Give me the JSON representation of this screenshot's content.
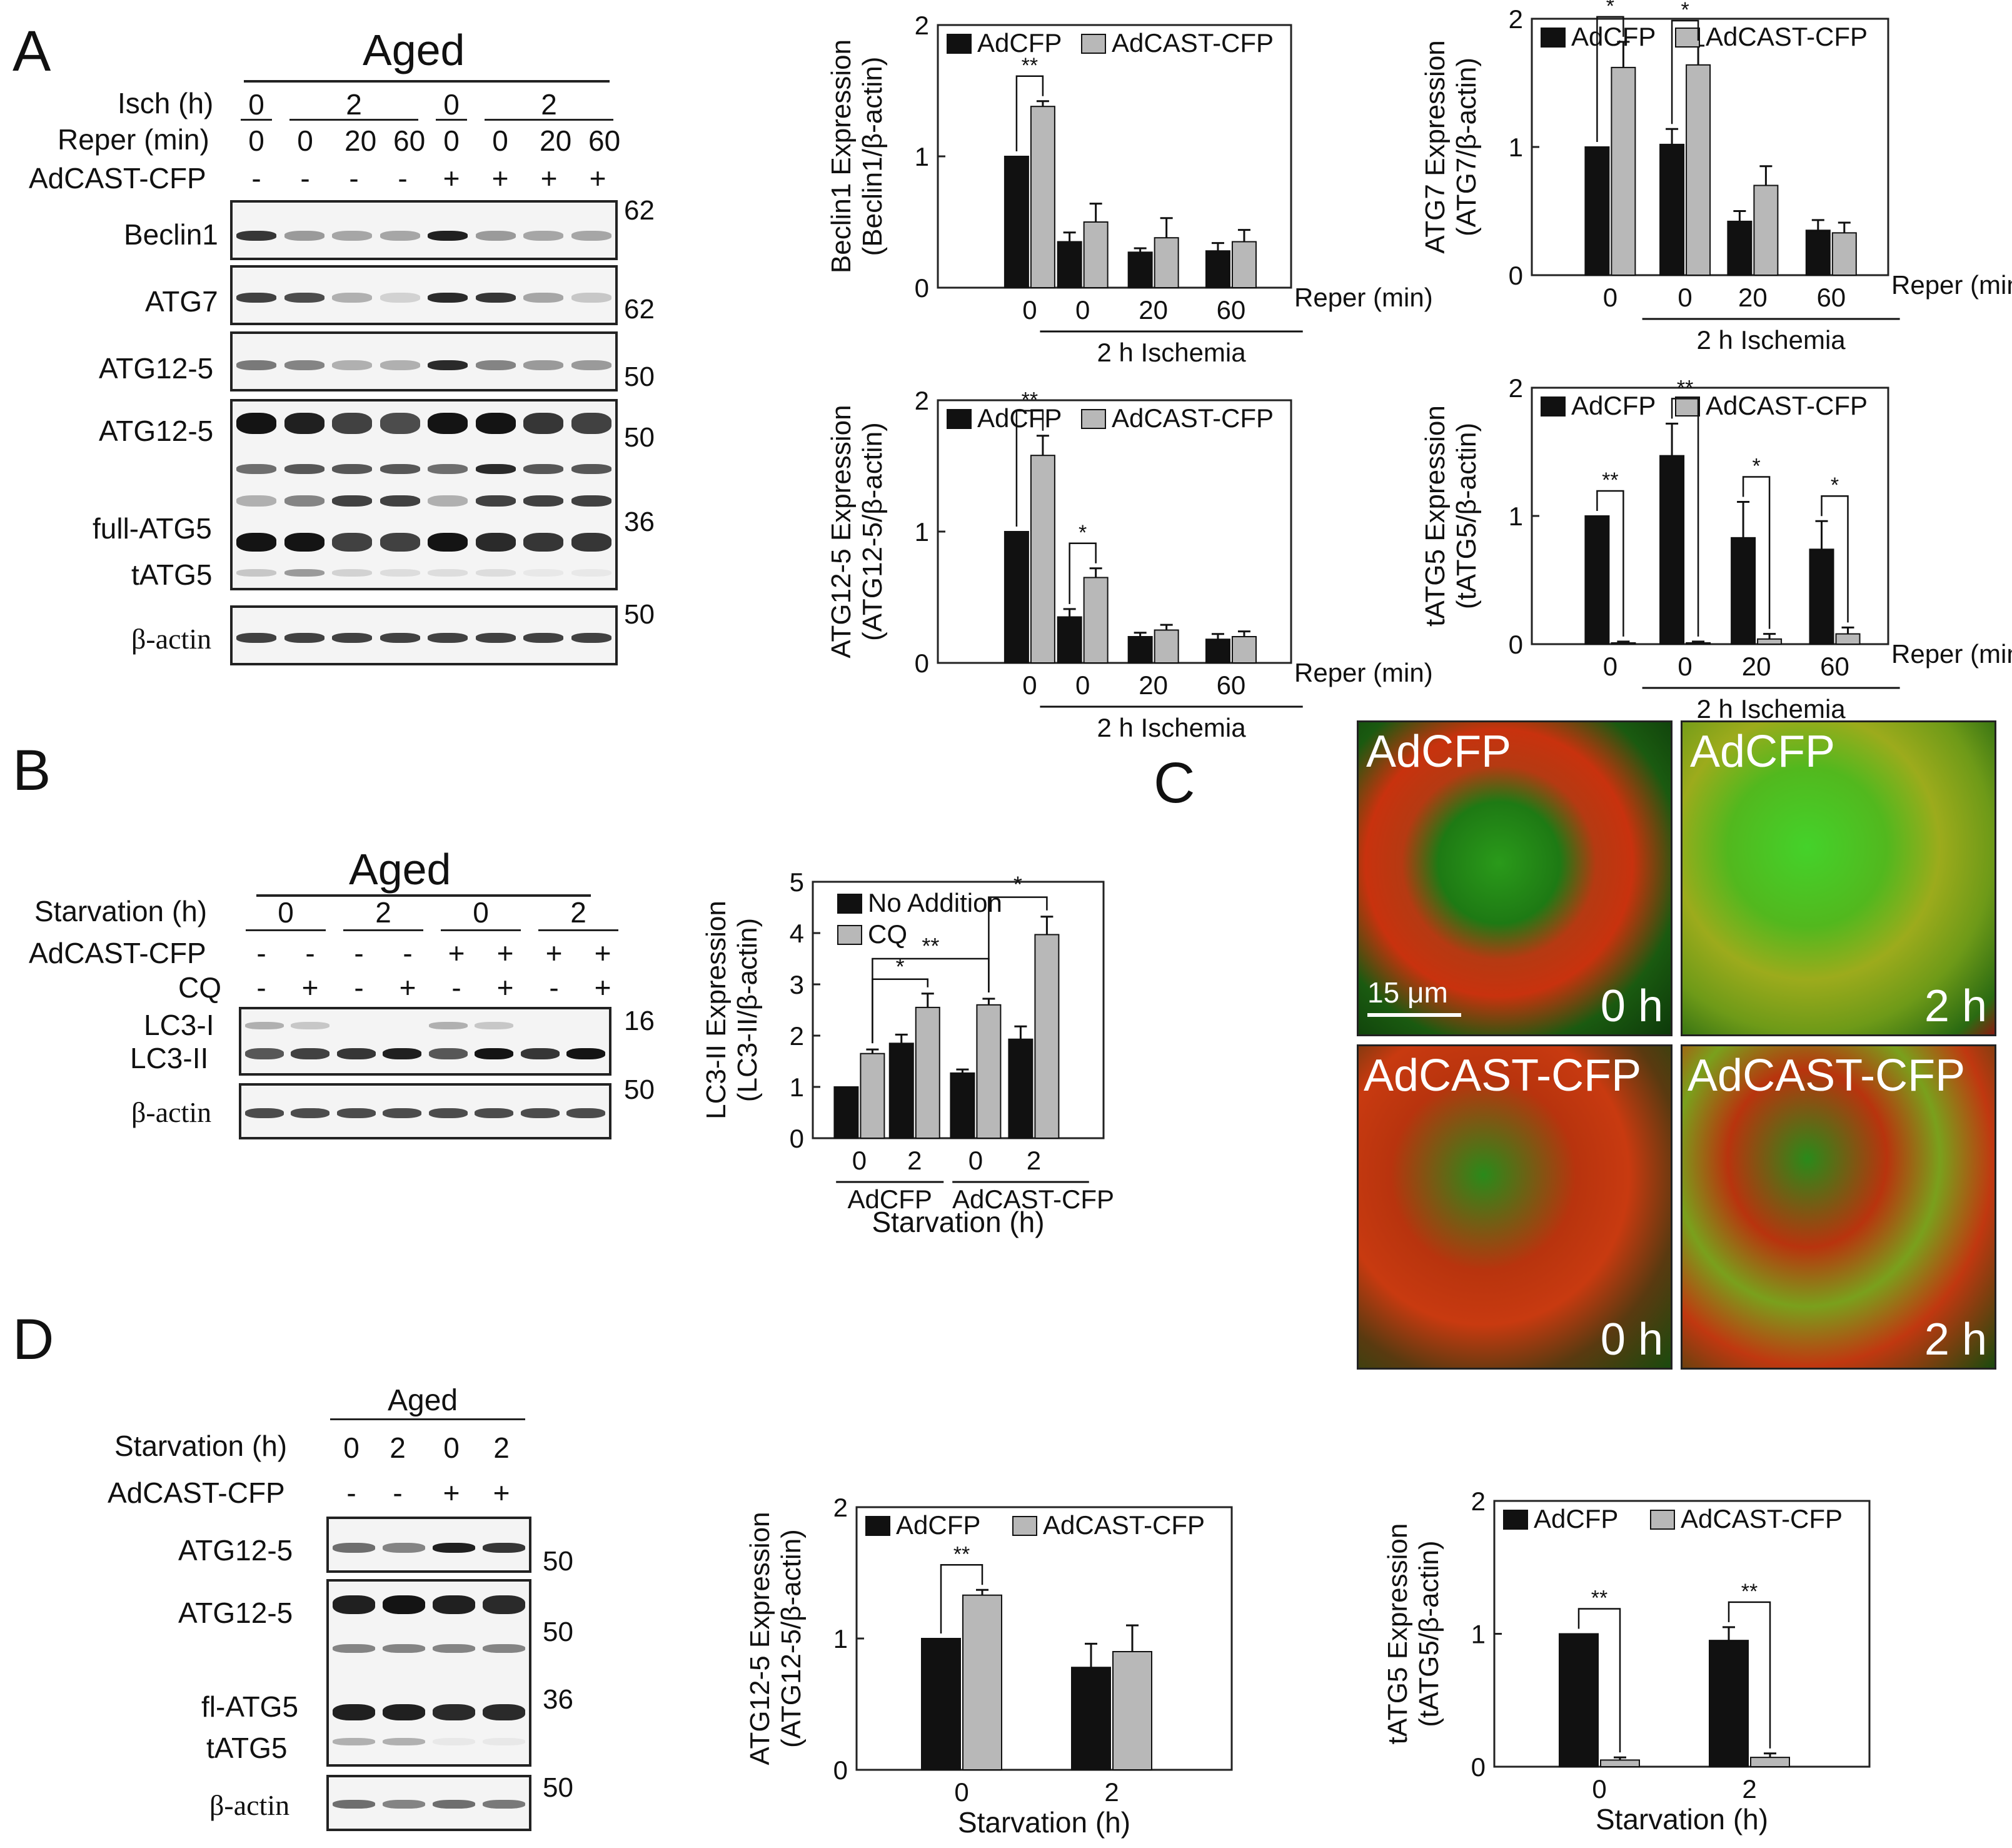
{
  "panels": {
    "A": "A",
    "B": "B",
    "C": "C",
    "D": "D"
  },
  "blotA": {
    "header": "Aged",
    "row_labels": [
      "Isch (h)",
      "Reper (min)",
      "AdCAST-CFP"
    ],
    "isch": [
      "0",
      "2",
      "0",
      "2"
    ],
    "reper": [
      "0",
      "0",
      "20",
      "60",
      "0",
      "0",
      "20",
      "60"
    ],
    "cast": [
      "-",
      "-",
      "-",
      "-",
      "+",
      "+",
      "+",
      "+"
    ],
    "bands": [
      "Beclin1",
      "ATG7",
      "ATG12-5",
      "ATG12-5",
      "full-ATG5",
      "tATG5",
      "β-actin"
    ],
    "mw": [
      "62",
      "62",
      "50",
      "50",
      "36",
      "50"
    ]
  },
  "blotB": {
    "header": "Aged",
    "row_labels": [
      "Starvation (h)",
      "AdCAST-CFP",
      "CQ"
    ],
    "starv": [
      "0",
      "2",
      "0",
      "2"
    ],
    "cast": [
      "-",
      "-",
      "-",
      "-",
      "+",
      "+",
      "+",
      "+"
    ],
    "cq": [
      "-",
      "+",
      "-",
      "+",
      "-",
      "+",
      "-",
      "+"
    ],
    "bands": [
      "LC3-I",
      "LC3-II",
      "β-actin"
    ],
    "mw": [
      "16",
      "50"
    ]
  },
  "blotD": {
    "header": "Aged",
    "row_labels": [
      "Starvation (h)",
      "AdCAST-CFP"
    ],
    "starv": [
      "0",
      "2",
      "0",
      "2"
    ],
    "cast": [
      "-",
      "-",
      "+",
      "+"
    ],
    "bands": [
      "ATG12-5",
      "ATG12-5",
      "fl-ATG5",
      "tATG5",
      "β-actin"
    ],
    "mw": [
      "50",
      "50",
      "36",
      "50"
    ]
  },
  "micro": {
    "labels": [
      "AdCFP",
      "AdCFP",
      "AdCAST-CFP",
      "AdCAST-CFP"
    ],
    "times": [
      "0 h",
      "2 h",
      "0 h",
      "2 h"
    ],
    "scale": "15 μm"
  },
  "chart_data": [
    {
      "id": "A1",
      "type": "bar",
      "ylabel1": "Beclin1 Expression",
      "ylabel2": "(Beclin1/β-actin)",
      "ylim": [
        0,
        2
      ],
      "yticks": [
        "0",
        "1",
        "2"
      ],
      "categories": [
        "0",
        "0",
        "20",
        "60"
      ],
      "xunit": "Reper (min)",
      "group_label": "2 h Ischemia",
      "legend": [
        "AdCFP",
        "AdCAST-CFP"
      ],
      "series": [
        {
          "name": "AdCFP",
          "values": [
            1.0,
            0.35,
            0.27,
            0.28
          ],
          "err": [
            0,
            0.07,
            0.03,
            0.06
          ]
        },
        {
          "name": "AdCAST-CFP",
          "values": [
            1.38,
            0.5,
            0.38,
            0.35
          ],
          "err": [
            0.04,
            0.14,
            0.15,
            0.09
          ]
        }
      ],
      "sig": [
        {
          "cat": 0,
          "label": "**"
        }
      ]
    },
    {
      "id": "A2",
      "type": "bar",
      "ylabel1": "ATG7 Expression",
      "ylabel2": "(ATG7/β-actin)",
      "ylim": [
        0,
        2
      ],
      "yticks": [
        "0",
        "1",
        "2"
      ],
      "categories": [
        "0",
        "0",
        "20",
        "60"
      ],
      "xunit": "Reper (min)",
      "group_label": "2 h Ischemia",
      "legend": [
        "AdCFP",
        "AdCAST-CFP"
      ],
      "series": [
        {
          "name": "AdCFP",
          "values": [
            1.0,
            1.02,
            0.42,
            0.35
          ],
          "err": [
            0,
            0.12,
            0.08,
            0.08
          ]
        },
        {
          "name": "AdCAST-CFP",
          "values": [
            1.62,
            1.64,
            0.7,
            0.33
          ],
          "err": [
            0.2,
            0.15,
            0.15,
            0.08
          ]
        }
      ],
      "sig": [
        {
          "cat": 0,
          "label": "*"
        },
        {
          "cat": 1,
          "label": "*"
        }
      ]
    },
    {
      "id": "A3",
      "type": "bar",
      "ylabel1": "ATG12-5 Expression",
      "ylabel2": "(ATG12-5/β-actin)",
      "ylim": [
        0,
        2
      ],
      "yticks": [
        "0",
        "1",
        "2"
      ],
      "categories": [
        "0",
        "0",
        "20",
        "60"
      ],
      "xunit": "Reper (min)",
      "group_label": "2 h Ischemia",
      "legend": [
        "AdCFP",
        "AdCAST-CFP"
      ],
      "series": [
        {
          "name": "AdCFP",
          "values": [
            1.0,
            0.35,
            0.2,
            0.18
          ],
          "err": [
            0,
            0.06,
            0.03,
            0.04
          ]
        },
        {
          "name": "AdCAST-CFP",
          "values": [
            1.58,
            0.65,
            0.25,
            0.2
          ],
          "err": [
            0.15,
            0.07,
            0.04,
            0.04
          ]
        }
      ],
      "sig": [
        {
          "cat": 0,
          "label": "**"
        },
        {
          "cat": 1,
          "label": "*"
        }
      ]
    },
    {
      "id": "A4",
      "type": "bar",
      "ylabel1": "tATG5 Expression",
      "ylabel2": "(tATG5/β-actin)",
      "ylim": [
        0,
        2
      ],
      "yticks": [
        "0",
        "1",
        "2"
      ],
      "categories": [
        "0",
        "0",
        "20",
        "60"
      ],
      "xunit": "Reper (min)",
      "group_label": "2 h Ischemia",
      "legend": [
        "AdCFP",
        "AdCAST-CFP"
      ],
      "series": [
        {
          "name": "AdCFP",
          "values": [
            1.0,
            1.47,
            0.83,
            0.74
          ],
          "err": [
            0,
            0.25,
            0.28,
            0.22
          ]
        },
        {
          "name": "AdCAST-CFP",
          "values": [
            0.01,
            0.01,
            0.04,
            0.08
          ],
          "err": [
            0.01,
            0.01,
            0.04,
            0.05
          ]
        }
      ],
      "sig": [
        {
          "cat": 0,
          "label": "**"
        },
        {
          "cat": 1,
          "label": "**"
        },
        {
          "cat": 2,
          "label": "*"
        },
        {
          "cat": 3,
          "label": "*"
        }
      ]
    },
    {
      "id": "B",
      "type": "bar",
      "ylabel1": "LC3-II Expression",
      "ylabel2": "(LC3-II/β-actin)",
      "ylim": [
        0,
        5
      ],
      "yticks": [
        "0",
        "1",
        "2",
        "3",
        "4",
        "5"
      ],
      "categories": [
        "0",
        "2",
        "0",
        "2"
      ],
      "groups": [
        "AdCFP",
        "AdCAST-CFP"
      ],
      "xlabel": "Starvation (h)",
      "legend": [
        "No Addition",
        "CQ"
      ],
      "series": [
        {
          "name": "No Addition",
          "values": [
            1.0,
            1.85,
            1.27,
            1.93
          ],
          "err": [
            0,
            0.17,
            0.07,
            0.25
          ]
        },
        {
          "name": "CQ",
          "values": [
            1.65,
            2.55,
            2.6,
            3.97
          ],
          "err": [
            0.08,
            0.27,
            0.12,
            0.35
          ]
        }
      ],
      "sig": [
        {
          "label": "*"
        },
        {
          "label": "**"
        },
        {
          "label": "*"
        }
      ]
    },
    {
      "id": "D1",
      "type": "bar",
      "ylabel1": "ATG12-5 Expression",
      "ylabel2": "(ATG12-5/β-actin)",
      "ylim": [
        0,
        2
      ],
      "yticks": [
        "0",
        "1",
        "2"
      ],
      "categories": [
        "0",
        "2"
      ],
      "xlabel": "Starvation (h)",
      "legend": [
        "AdCFP",
        "AdCAST-CFP"
      ],
      "series": [
        {
          "name": "AdCFP",
          "values": [
            1.0,
            0.78
          ],
          "err": [
            0,
            0.18
          ]
        },
        {
          "name": "AdCAST-CFP",
          "values": [
            1.33,
            0.9
          ],
          "err": [
            0.04,
            0.2
          ]
        }
      ],
      "sig": [
        {
          "cat": 0,
          "label": "**"
        }
      ]
    },
    {
      "id": "D2",
      "type": "bar",
      "ylabel1": "tATG5 Expression",
      "ylabel2": "(tATG5/β-actin)",
      "ylim": [
        0,
        2
      ],
      "yticks": [
        "0",
        "1",
        "2"
      ],
      "categories": [
        "0",
        "2"
      ],
      "xlabel": "Starvation (h)",
      "legend": [
        "AdCFP",
        "AdCAST-CFP"
      ],
      "series": [
        {
          "name": "AdCFP",
          "values": [
            1.0,
            0.95
          ],
          "err": [
            0,
            0.1
          ]
        },
        {
          "name": "AdCAST-CFP",
          "values": [
            0.05,
            0.07
          ],
          "err": [
            0.02,
            0.03
          ]
        }
      ],
      "sig": [
        {
          "cat": 0,
          "label": "**"
        },
        {
          "cat": 1,
          "label": "**"
        }
      ]
    }
  ]
}
